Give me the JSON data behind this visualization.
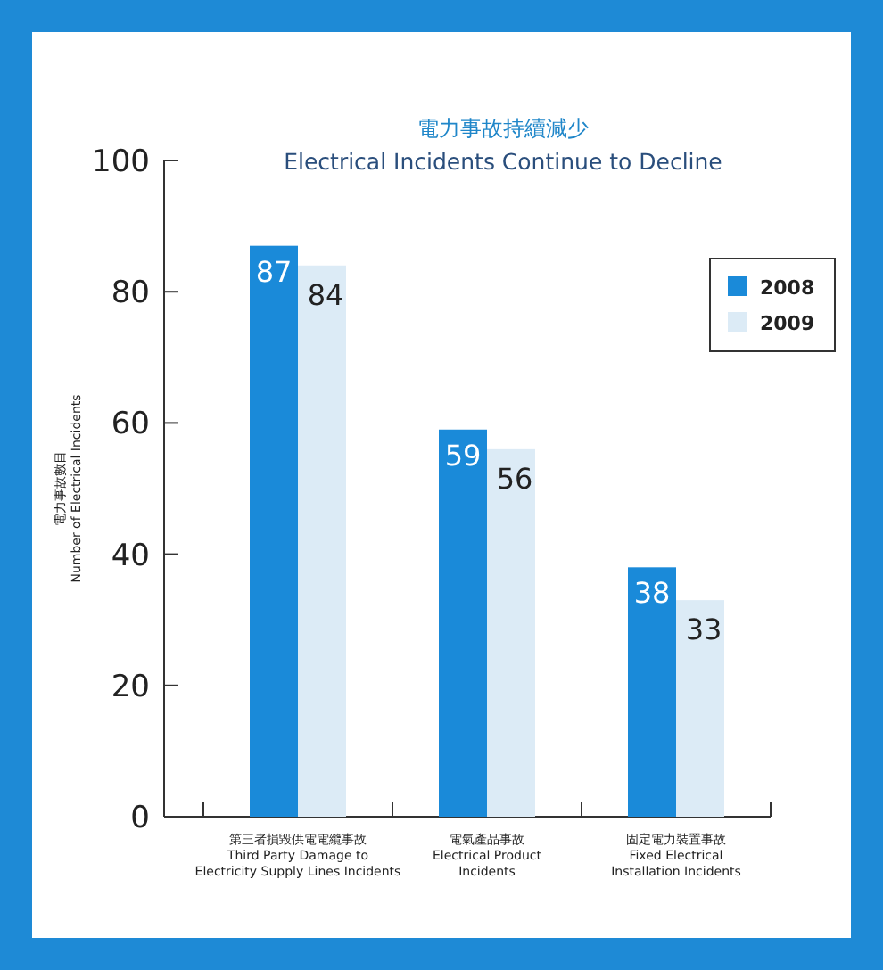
{
  "chart_data": {
    "type": "bar",
    "title": "電力事故持續減少",
    "subtitle": "Electrical Incidents Continue to Decline",
    "ylabel": "電力事故數目\nNumber of Electrical Incidents",
    "categories": [
      "第三者損毀供電電纜事故\nThird Party Damage to\nElectricity Supply Lines Incidents",
      "電氣產品事故\nElectrical Product\nIncidents",
      "固定電力裝置事故\nFixed Electrical\nInstallation Incidents"
    ],
    "series": [
      {
        "name": "2008",
        "color": "#1a8ad9",
        "values": [
          87,
          59,
          38
        ]
      },
      {
        "name": "2009",
        "color": "#dcebf6",
        "values": [
          84,
          56,
          33
        ]
      }
    ],
    "ylim": [
      0,
      100
    ],
    "yticks": [
      0,
      20,
      40,
      60,
      80,
      100
    ],
    "data_labels": true,
    "legend": "top right",
    "grid": false
  }
}
